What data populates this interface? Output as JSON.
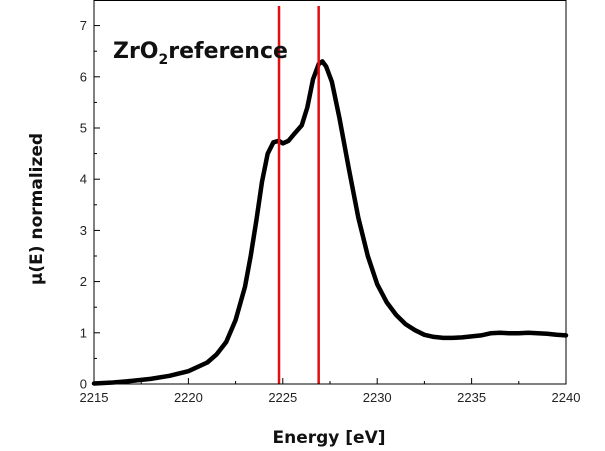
{
  "chart_data": {
    "type": "line",
    "title": "",
    "annotation": {
      "main": "ZrO",
      "sub": "2",
      "rest": "reference"
    },
    "xlabel": "Energy [eV]",
    "ylabel": "μ(E) normalized",
    "xlim": [
      2215,
      2240
    ],
    "ylim": [
      0,
      7.5
    ],
    "xticks": [
      2215,
      2220,
      2225,
      2230,
      2235,
      2240
    ],
    "yticks": [
      0,
      1,
      2,
      3,
      4,
      5,
      6,
      7
    ],
    "grid": false,
    "vlines": [
      2224.8,
      2226.9
    ],
    "vline_color": "#e01010",
    "line_color": "#000000",
    "series": [
      {
        "x": [
          2215,
          2216,
          2217,
          2218,
          2219,
          2220,
          2221,
          2221.5,
          2222,
          2222.5,
          2223,
          2223.3,
          2223.6,
          2223.9,
          2224.2,
          2224.5,
          2224.8,
          2225.0,
          2225.3,
          2225.6,
          2226.0,
          2226.3,
          2226.6,
          2226.9,
          2227.1,
          2227.3,
          2227.6,
          2228.0,
          2228.5,
          2229.0,
          2229.5,
          2230.0,
          2230.5,
          2231.0,
          2231.5,
          2232.0,
          2232.5,
          2233.0,
          2233.5,
          2234.0,
          2234.5,
          2235.0,
          2235.5,
          2236.0,
          2236.5,
          2237.0,
          2237.5,
          2238.0,
          2238.5,
          2239.0,
          2239.5,
          2240.0
        ],
        "y": [
          0.01,
          0.03,
          0.06,
          0.1,
          0.16,
          0.25,
          0.42,
          0.58,
          0.82,
          1.25,
          1.9,
          2.5,
          3.2,
          3.95,
          4.5,
          4.72,
          4.75,
          4.7,
          4.75,
          4.88,
          5.05,
          5.4,
          5.95,
          6.25,
          6.3,
          6.2,
          5.9,
          5.2,
          4.2,
          3.25,
          2.5,
          1.95,
          1.6,
          1.35,
          1.17,
          1.05,
          0.96,
          0.92,
          0.9,
          0.9,
          0.91,
          0.93,
          0.95,
          0.99,
          1.0,
          0.99,
          0.99,
          1.0,
          0.99,
          0.98,
          0.96,
          0.95
        ]
      }
    ]
  }
}
